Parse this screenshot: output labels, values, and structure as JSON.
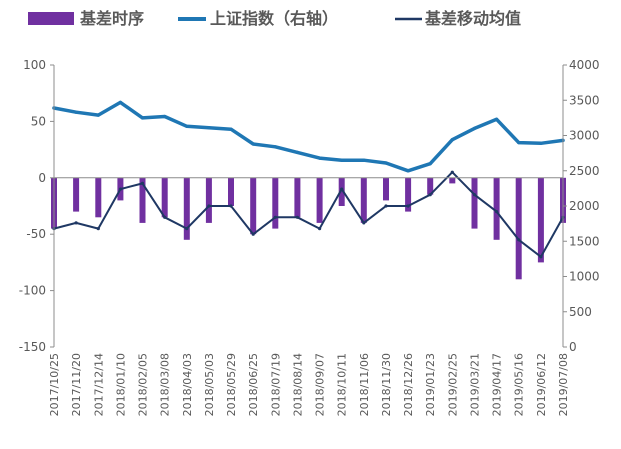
{
  "chart_data": {
    "type": "bar+line",
    "legend": {
      "placement": "top",
      "items": [
        {
          "label": "基差时序",
          "kind": "bar",
          "color": "#7030A0"
        },
        {
          "label": "上证指数（右轴）",
          "kind": "line",
          "color": "#1F77B4"
        },
        {
          "label": "基差移动均值",
          "kind": "line",
          "color": "#1F3864"
        }
      ]
    },
    "y_left": {
      "min": -150,
      "max": 100,
      "ticks": [
        "100",
        "50",
        "0",
        "-50",
        "-100",
        "-150"
      ]
    },
    "y_right": {
      "min": 0,
      "max": 4000,
      "ticks": [
        "4000",
        "3500",
        "3000",
        "2500",
        "2000",
        "1500",
        "1000",
        "500",
        "0"
      ]
    },
    "x_tick_labels": [
      "2017/10/25",
      "2017/11/20",
      "2017/12/14",
      "2018/01/10",
      "2018/02/05",
      "2018/03/08",
      "2018/04/03",
      "2018/05/03",
      "2018/05/29",
      "2018/06/25",
      "2018/07/19",
      "2018/08/14",
      "2018/09/07",
      "2018/10/11",
      "2018/11/06",
      "2018/11/30",
      "2018/12/26",
      "2019/01/23",
      "2019/02/25",
      "2019/03/21",
      "2019/04/17",
      "2019/05/16",
      "2019/06/12",
      "2019/07/08"
    ],
    "grid": false,
    "series": [
      {
        "name": "基差时序",
        "x": [
          "2017/10/25",
          "2017/11/20",
          "2017/12/14",
          "2018/01/10",
          "2018/02/05",
          "2018/03/08",
          "2018/04/03",
          "2018/05/03",
          "2018/05/29",
          "2018/06/25",
          "2018/07/19",
          "2018/08/14",
          "2018/09/07",
          "2018/10/11",
          "2018/11/06",
          "2018/11/30",
          "2018/12/26",
          "2019/01/23",
          "2019/02/25",
          "2019/03/21",
          "2019/04/17",
          "2019/05/16",
          "2019/06/12",
          "2019/07/08"
        ],
        "values": [
          -45,
          -30,
          -35,
          -20,
          -40,
          -35,
          -55,
          -40,
          -25,
          -50,
          -45,
          -35,
          -40,
          -25,
          -40,
          -20,
          -30,
          -15,
          -5,
          -45,
          -55,
          -90,
          -75,
          -40
        ]
      },
      {
        "name": "上证指数（右轴）",
        "x": [
          "2017/10/25",
          "2017/11/20",
          "2017/12/14",
          "2018/01/10",
          "2018/02/05",
          "2018/03/08",
          "2018/04/03",
          "2018/05/03",
          "2018/05/29",
          "2018/06/25",
          "2018/07/19",
          "2018/08/14",
          "2018/09/07",
          "2018/10/11",
          "2018/11/06",
          "2018/11/30",
          "2018/12/26",
          "2019/01/23",
          "2019/02/25",
          "2019/03/21",
          "2019/04/17",
          "2019/05/16",
          "2019/06/12",
          "2019/07/08"
        ],
        "values": [
          3390,
          3330,
          3290,
          3470,
          3250,
          3270,
          3130,
          3110,
          3090,
          2880,
          2840,
          2760,
          2680,
          2650,
          2650,
          2610,
          2500,
          2600,
          2940,
          3100,
          3230,
          2900,
          2890,
          2930
        ]
      },
      {
        "name": "基差移动均值",
        "x": [
          "2017/10/25",
          "2017/11/20",
          "2017/12/14",
          "2018/01/10",
          "2018/02/05",
          "2018/03/08",
          "2018/04/03",
          "2018/05/03",
          "2018/05/29",
          "2018/06/25",
          "2018/07/19",
          "2018/08/14",
          "2018/09/07",
          "2018/10/11",
          "2018/11/06",
          "2018/11/30",
          "2018/12/26",
          "2019/01/23",
          "2019/02/25",
          "2019/03/21",
          "2019/04/17",
          "2019/05/16",
          "2019/06/12",
          "2019/07/08"
        ],
        "values": [
          -45,
          -40,
          -45,
          -10,
          -5,
          -35,
          -45,
          -25,
          -25,
          -50,
          -35,
          -35,
          -45,
          -10,
          -40,
          -25,
          -25,
          -15,
          5,
          -15,
          -30,
          -55,
          -70,
          -35
        ]
      }
    ]
  }
}
